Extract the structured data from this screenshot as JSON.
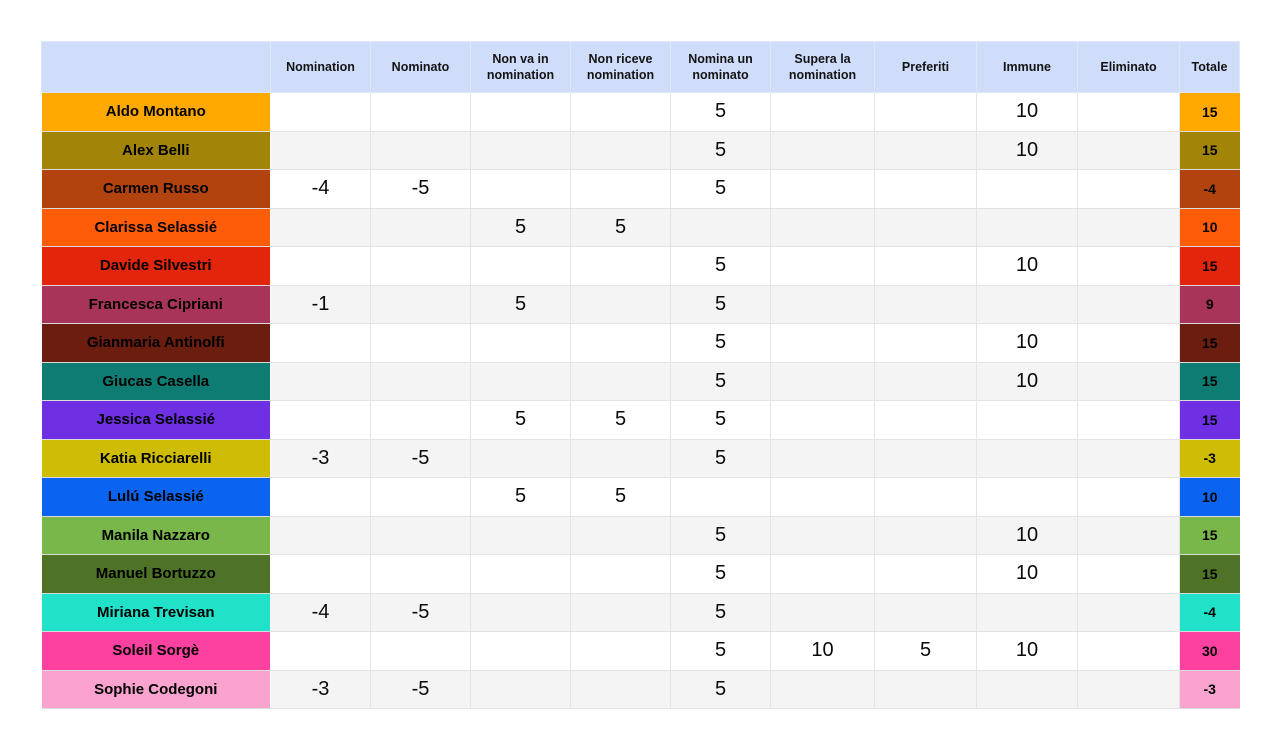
{
  "page": {
    "background": "#ffffff"
  },
  "table": {
    "header_bg": "#cfdcfa",
    "alt_row_bg": "#f4f4f4",
    "grid_color": "#e4e4e4",
    "text_color": "#000000",
    "columns": [
      "",
      "Nomination",
      "Nominato",
      "Non va in nomination",
      "Non riceve nomination",
      "Nomina un nominato",
      "Supera la nomination",
      "Preferiti",
      "Immune",
      "Eliminato",
      "Totale"
    ],
    "rows": [
      {
        "name": "Aldo Montano",
        "color": "#ffa800",
        "values": [
          "",
          "",
          "",
          "",
          "5",
          "",
          "",
          "10",
          ""
        ],
        "total": "15"
      },
      {
        "name": "Alex Belli",
        "color": "#a28408",
        "values": [
          "",
          "",
          "",
          "",
          "5",
          "",
          "",
          "10",
          ""
        ],
        "total": "15"
      },
      {
        "name": "Carmen Russo",
        "color": "#b2430f",
        "values": [
          "-4",
          "-5",
          "",
          "",
          "5",
          "",
          "",
          "",
          ""
        ],
        "total": "-4"
      },
      {
        "name": "Clarissa Selassié",
        "color": "#ff5c0a",
        "values": [
          "",
          "",
          "5",
          "5",
          "",
          "",
          "",
          "",
          ""
        ],
        "total": "10"
      },
      {
        "name": "Davide Silvestri",
        "color": "#e3250c",
        "values": [
          "",
          "",
          "",
          "",
          "5",
          "",
          "",
          "10",
          ""
        ],
        "total": "15"
      },
      {
        "name": "Francesca Cipriani",
        "color": "#a93459",
        "values": [
          "-1",
          "",
          "5",
          "",
          "5",
          "",
          "",
          "",
          ""
        ],
        "total": "9"
      },
      {
        "name": "Gianmaria Antinolfi",
        "color": "#6b1e10",
        "values": [
          "",
          "",
          "",
          "",
          "5",
          "",
          "",
          "10",
          ""
        ],
        "total": "15"
      },
      {
        "name": "Giucas Casella",
        "color": "#0e7c72",
        "values": [
          "",
          "",
          "",
          "",
          "5",
          "",
          "",
          "10",
          ""
        ],
        "total": "15"
      },
      {
        "name": "Jessica Selassié",
        "color": "#6f2fe3",
        "values": [
          "",
          "",
          "5",
          "5",
          "5",
          "",
          "",
          "",
          ""
        ],
        "total": "15"
      },
      {
        "name": "Katia Ricciarelli",
        "color": "#cfbd05",
        "values": [
          "-3",
          "-5",
          "",
          "",
          "5",
          "",
          "",
          "",
          ""
        ],
        "total": "-3"
      },
      {
        "name": "Lulú Selassié",
        "color": "#0a64ef",
        "values": [
          "",
          "",
          "5",
          "5",
          "",
          "",
          "",
          "",
          ""
        ],
        "total": "10"
      },
      {
        "name": "Manila Nazzaro",
        "color": "#7ab74a",
        "values": [
          "",
          "",
          "",
          "",
          "5",
          "",
          "",
          "10",
          ""
        ],
        "total": "15"
      },
      {
        "name": "Manuel Bortuzzo",
        "color": "#4e7326",
        "values": [
          "",
          "",
          "",
          "",
          "5",
          "",
          "",
          "10",
          ""
        ],
        "total": "15"
      },
      {
        "name": "Miriana Trevisan",
        "color": "#20e2c9",
        "values": [
          "-4",
          "-5",
          "",
          "",
          "5",
          "",
          "",
          "",
          ""
        ],
        "total": "-4"
      },
      {
        "name": "Soleil Sorgè",
        "color": "#fc41a1",
        "values": [
          "",
          "",
          "",
          "",
          "5",
          "10",
          "5",
          "10",
          ""
        ],
        "total": "30"
      },
      {
        "name": "Sophie Codegoni",
        "color": "#fba3cf",
        "values": [
          "-3",
          "-5",
          "",
          "",
          "5",
          "",
          "",
          "",
          ""
        ],
        "total": "-3"
      }
    ]
  }
}
